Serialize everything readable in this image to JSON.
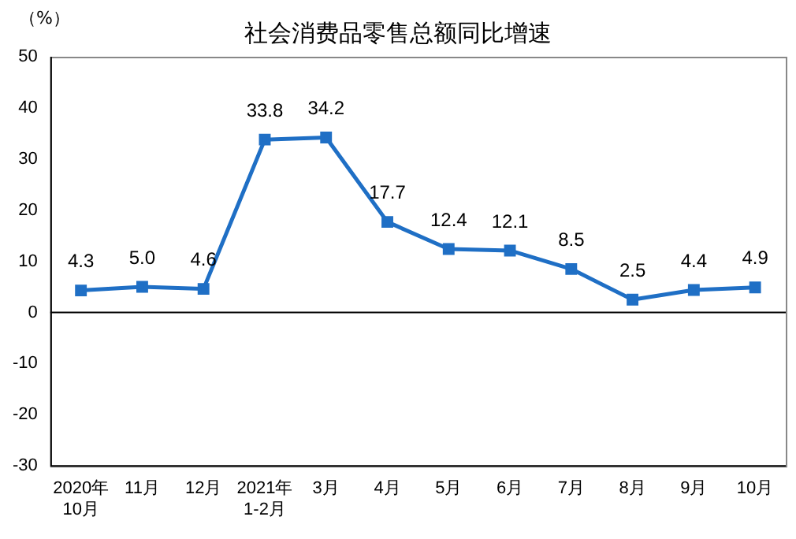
{
  "chart_data": {
    "type": "line",
    "title": "社会消费品零售总额同比增速",
    "ylabel": "（%）",
    "categories": [
      "2020年\n10月",
      "11月",
      "12月",
      "2021年\n1-2月",
      "3月",
      "4月",
      "5月",
      "6月",
      "7月",
      "8月",
      "9月",
      "10月"
    ],
    "series": [
      {
        "color": "#1f6fc5",
        "values": [
          4.3,
          5.0,
          4.6,
          33.8,
          34.2,
          17.7,
          12.4,
          12.1,
          8.5,
          2.5,
          4.4,
          4.9
        ],
        "value_labels": [
          "4.3",
          "5.0",
          "4.6",
          "33.8",
          "34.2",
          "17.7",
          "12.4",
          "12.1",
          "8.5",
          "2.5",
          "4.4",
          "4.9"
        ]
      }
    ],
    "ylim": [
      -30,
      50
    ],
    "yticks": [
      -30,
      -20,
      -10,
      0,
      10,
      20,
      30,
      40,
      50
    ],
    "ref_lines": [
      {
        "axis": "y",
        "value": 0,
        "color": "#000000"
      }
    ],
    "grid": false,
    "legend": false,
    "marker": "square",
    "line_style": "solid"
  }
}
